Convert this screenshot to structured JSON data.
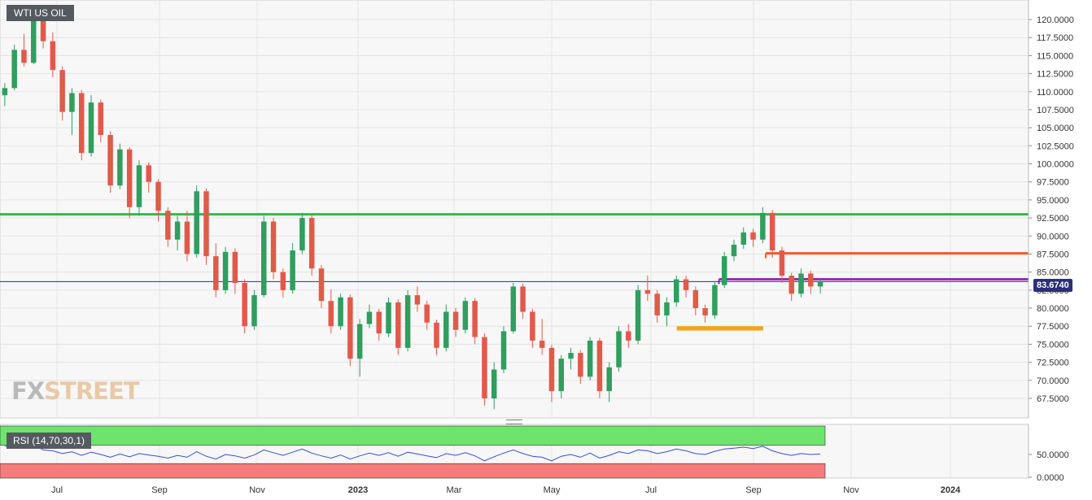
{
  "chart_data": {
    "type": "candlestick",
    "title": "WTI US OIL",
    "watermark": {
      "fx": "FX",
      "street": "STREET"
    },
    "x_axis": {
      "ticks": [
        {
          "label": "Jul",
          "bold": false
        },
        {
          "label": "Sep",
          "bold": false
        },
        {
          "label": "Nov",
          "bold": false
        },
        {
          "label": "2023",
          "bold": true
        },
        {
          "label": "Mar",
          "bold": false
        },
        {
          "label": "May",
          "bold": false
        },
        {
          "label": "Jul",
          "bold": false
        },
        {
          "label": "Sep",
          "bold": false
        },
        {
          "label": "Nov",
          "bold": false
        },
        {
          "label": "2024",
          "bold": true
        }
      ]
    },
    "y_axis": {
      "range": [
        65.0,
        122.5
      ],
      "ticks": [
        "120.0000",
        "117.5000",
        "115.0000",
        "112.5000",
        "110.0000",
        "107.5000",
        "105.0000",
        "102.5000",
        "100.0000",
        "97.5000",
        "95.0000",
        "92.5000",
        "90.0000",
        "87.5000",
        "85.0000",
        "82.5000",
        "80.0000",
        "77.5000",
        "75.0000",
        "72.5000",
        "70.0000",
        "67.5000"
      ]
    },
    "current_price": "83.6740",
    "current_price_value": 83.674,
    "candles_ohlc": [
      [
        109.5,
        111.2,
        108.0,
        110.5
      ],
      [
        110.5,
        116.5,
        110.2,
        115.8
      ],
      [
        115.8,
        118.0,
        113.5,
        114.0
      ],
      [
        114.0,
        121.2,
        113.8,
        120.5
      ],
      [
        120.5,
        121.5,
        116.0,
        117.0
      ],
      [
        117.0,
        118.2,
        112.0,
        113.0
      ],
      [
        113.0,
        113.5,
        106.0,
        107.2
      ],
      [
        107.2,
        110.5,
        104.0,
        109.8
      ],
      [
        109.8,
        110.2,
        100.5,
        101.5
      ],
      [
        101.5,
        109.5,
        101.0,
        108.5
      ],
      [
        108.5,
        108.9,
        103.0,
        104.0
      ],
      [
        104.0,
        104.5,
        96.0,
        97.0
      ],
      [
        97.0,
        102.8,
        96.5,
        102.0
      ],
      [
        102.0,
        102.3,
        92.5,
        94.0
      ],
      [
        94.0,
        100.5,
        92.8,
        99.8
      ],
      [
        99.8,
        100.2,
        96.0,
        97.5
      ],
      [
        97.5,
        97.9,
        92.0,
        93.5
      ],
      [
        93.5,
        94.0,
        88.5,
        89.5
      ],
      [
        89.5,
        92.8,
        88.0,
        92.0
      ],
      [
        92.0,
        93.5,
        86.5,
        87.5
      ],
      [
        87.5,
        97.0,
        87.0,
        96.2
      ],
      [
        96.2,
        96.6,
        86.0,
        87.2
      ],
      [
        87.2,
        89.0,
        81.5,
        82.5
      ],
      [
        82.5,
        88.5,
        82.0,
        87.8
      ],
      [
        87.8,
        88.3,
        82.0,
        83.5
      ],
      [
        83.5,
        84.0,
        76.5,
        77.5
      ],
      [
        77.5,
        82.5,
        77.0,
        81.8
      ],
      [
        81.8,
        92.8,
        81.5,
        92.0
      ],
      [
        92.0,
        92.5,
        84.0,
        85.0
      ],
      [
        85.0,
        85.5,
        81.5,
        82.5
      ],
      [
        82.5,
        89.0,
        82.0,
        88.0
      ],
      [
        88.0,
        93.2,
        87.5,
        92.5
      ],
      [
        92.5,
        92.9,
        84.5,
        85.5
      ],
      [
        85.5,
        86.0,
        80.0,
        81.0
      ],
      [
        81.0,
        82.6,
        76.5,
        77.5
      ],
      [
        77.5,
        82.0,
        77.0,
        81.5
      ],
      [
        81.5,
        81.9,
        72.0,
        73.0
      ],
      [
        73.0,
        78.5,
        70.5,
        77.8
      ],
      [
        77.8,
        80.5,
        77.2,
        79.5
      ],
      [
        79.5,
        79.9,
        75.5,
        76.5
      ],
      [
        76.5,
        81.5,
        76.0,
        80.8
      ],
      [
        80.8,
        81.2,
        73.5,
        74.5
      ],
      [
        74.5,
        82.5,
        74.0,
        81.8
      ],
      [
        81.8,
        83.0,
        79.5,
        80.5
      ],
      [
        80.5,
        81.0,
        77.0,
        78.0
      ],
      [
        78.0,
        78.4,
        73.5,
        74.5
      ],
      [
        74.5,
        80.5,
        74.0,
        79.5
      ],
      [
        79.5,
        80.0,
        76.0,
        77.0
      ],
      [
        77.0,
        81.5,
        76.5,
        81.0
      ],
      [
        81.0,
        81.4,
        75.0,
        76.0
      ],
      [
        76.0,
        76.5,
        66.5,
        67.5
      ],
      [
        67.5,
        72.5,
        66.0,
        71.5
      ],
      [
        71.5,
        77.5,
        71.0,
        76.8
      ],
      [
        76.8,
        83.5,
        76.5,
        83.0
      ],
      [
        83.0,
        83.4,
        78.5,
        79.5
      ],
      [
        79.5,
        79.9,
        74.5,
        75.5
      ],
      [
        75.5,
        78.5,
        73.5,
        74.5
      ],
      [
        74.5,
        74.9,
        67.0,
        68.5
      ],
      [
        68.5,
        73.5,
        67.5,
        73.0
      ],
      [
        73.0,
        74.5,
        71.5,
        73.8
      ],
      [
        73.8,
        74.2,
        69.5,
        70.5
      ],
      [
        70.5,
        76.0,
        70.0,
        75.5
      ],
      [
        75.5,
        75.9,
        67.5,
        68.5
      ],
      [
        68.5,
        72.5,
        67.0,
        71.8
      ],
      [
        71.8,
        77.5,
        71.2,
        76.8
      ],
      [
        76.8,
        77.8,
        74.5,
        75.5
      ],
      [
        75.5,
        83.2,
        75.0,
        82.5
      ],
      [
        82.5,
        84.5,
        81.0,
        82.0
      ],
      [
        82.0,
        82.5,
        78.0,
        79.0
      ],
      [
        79.0,
        81.5,
        77.5,
        80.8
      ],
      [
        80.8,
        84.5,
        80.2,
        84.0
      ],
      [
        84.0,
        84.5,
        81.5,
        82.5
      ],
      [
        82.5,
        83.0,
        79.0,
        80.0
      ],
      [
        80.0,
        80.5,
        78.0,
        79.0
      ],
      [
        79.0,
        83.8,
        78.5,
        83.2
      ],
      [
        83.2,
        87.8,
        82.8,
        87.2
      ],
      [
        87.2,
        89.5,
        86.5,
        88.8
      ],
      [
        88.8,
        91.2,
        88.2,
        90.5
      ],
      [
        90.5,
        91.0,
        88.5,
        89.5
      ],
      [
        89.5,
        94.0,
        89.0,
        93.2
      ],
      [
        93.2,
        93.6,
        87.0,
        88.0
      ],
      [
        88.0,
        88.5,
        83.5,
        84.5
      ],
      [
        84.5,
        84.9,
        81.0,
        82.0
      ],
      [
        82.0,
        85.5,
        81.5,
        84.8
      ],
      [
        84.8,
        85.2,
        82.0,
        83.0
      ],
      [
        83.0,
        84.0,
        82.0,
        83.674
      ]
    ],
    "rsi": {
      "label": "RSI (14,70,30,1)",
      "levels": {
        "overbought": 70,
        "oversold": 30
      },
      "ticks": [
        "50.0000",
        "0.0000"
      ],
      "values": [
        68,
        70,
        64,
        72,
        60,
        58,
        52,
        56,
        48,
        55,
        50,
        44,
        51,
        45,
        52,
        49,
        46,
        42,
        48,
        44,
        56,
        46,
        40,
        50,
        47,
        42,
        49,
        60,
        54,
        48,
        55,
        62,
        53,
        47,
        42,
        49,
        40,
        47,
        53,
        48,
        54,
        46,
        55,
        51,
        47,
        43,
        52,
        48,
        54,
        47,
        36,
        45,
        53,
        60,
        52,
        46,
        44,
        36,
        46,
        50,
        44,
        53,
        42,
        48,
        56,
        52,
        60,
        58,
        52,
        56,
        62,
        58,
        52,
        50,
        57,
        62,
        64,
        66,
        63,
        68,
        58,
        52,
        48,
        52,
        50,
        51
      ]
    },
    "horizontal_lines": [
      {
        "level": 93.0,
        "from_frac": 0.0,
        "to_frac": 1.0,
        "color": "#39b54a",
        "thick": true
      },
      {
        "level": 87.6,
        "from_frac": 0.7445,
        "to_frac": 1.0,
        "color": "#f15a24",
        "thick": true
      },
      {
        "level": 84.0,
        "from_frac": 0.699,
        "to_frac": 1.0,
        "color": "#9b2fae",
        "thick": true
      },
      {
        "level": 77.2,
        "from_frac": 0.658,
        "to_frac": 0.742,
        "color": "#f7a21b",
        "band": 0.6
      },
      {
        "level": 83.674,
        "from_frac": 0.0,
        "to_frac": 1.0,
        "color": "#2b2f7a",
        "thick": false
      }
    ],
    "colors": {
      "up": "#2f9e5f",
      "down": "#e05a4a",
      "rsi_line": "#3550d8",
      "rsi_overbought": "#6ee36e",
      "rsi_oversold": "#f57c7c",
      "grid": "#e4e4e4",
      "panel_bg": "#f7f7f7"
    }
  }
}
